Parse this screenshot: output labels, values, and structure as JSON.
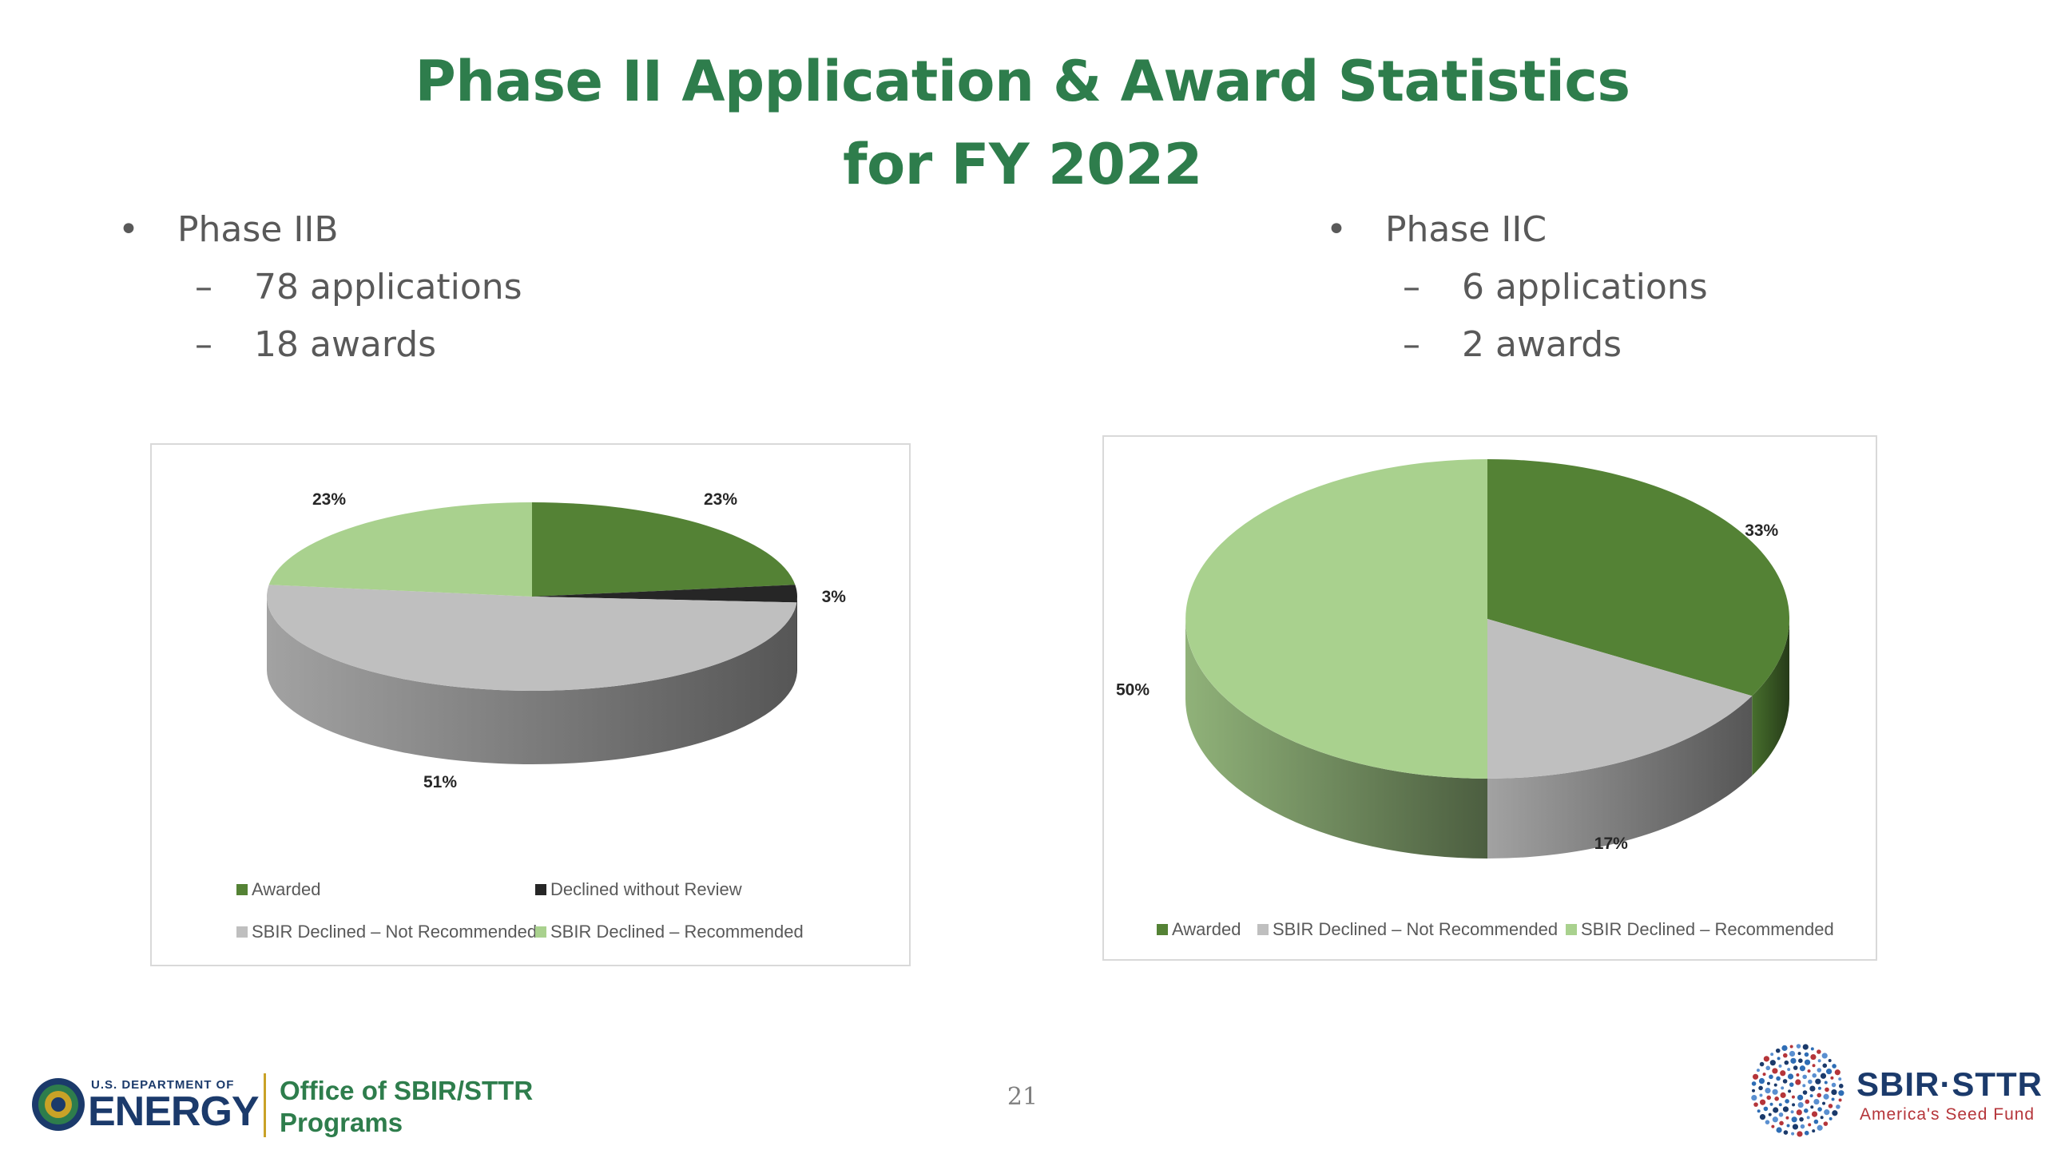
{
  "title": {
    "line1": "Phase II Application & Award Statistics",
    "line2": "for FY 2022"
  },
  "left_bullets": {
    "heading": "Phase IIB",
    "items": [
      "78 applications",
      "18 awards"
    ]
  },
  "right_bullets": {
    "heading": "Phase IIC",
    "items": [
      "6 applications",
      "2 awards"
    ]
  },
  "chart_data": [
    {
      "type": "pie",
      "style": "3d",
      "series": [
        {
          "values": [
            23,
            3,
            51,
            23
          ]
        }
      ],
      "categories": [
        "Awarded",
        "Declined without Review",
        "SBIR Declined – Not Recommended",
        "SBIR Declined – Recommended"
      ],
      "data_labels": [
        "23%",
        "3%",
        "51%",
        "23%"
      ],
      "colors": [
        "#548235",
        "#262626",
        "#bfbfbf",
        "#a9d18e"
      ],
      "legend_position": "bottom"
    },
    {
      "type": "pie",
      "style": "3d",
      "series": [
        {
          "values": [
            33,
            17,
            50
          ]
        }
      ],
      "categories": [
        "Awarded",
        "SBIR Declined – Not Recommended",
        "SBIR Declined – Recommended"
      ],
      "data_labels": [
        "33%",
        "17%",
        "50%"
      ],
      "colors": [
        "#548235",
        "#bfbfbf",
        "#a9d18e"
      ],
      "legend_position": "bottom"
    }
  ],
  "footer": {
    "doe_small": "U.S. DEPARTMENT OF",
    "doe_big": "ENERGY",
    "office_line1": "Office of SBIR/STTR",
    "office_line2": "Programs",
    "page_number": "21",
    "sbir_title": "SBIR·STTR",
    "sbir_tagline": "America's Seed Fund"
  }
}
